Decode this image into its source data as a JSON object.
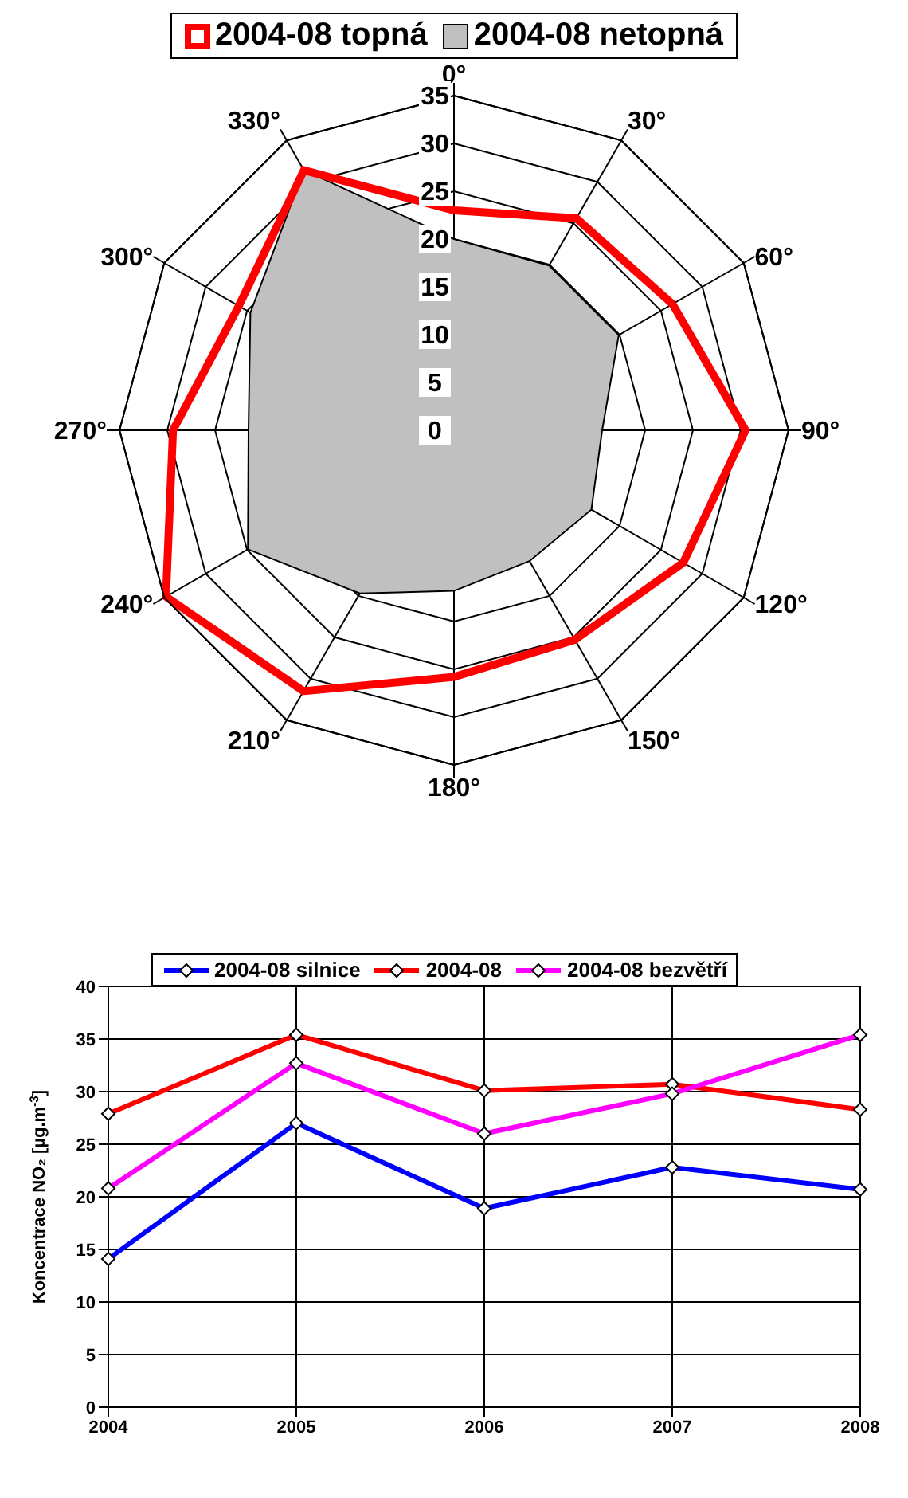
{
  "chart_data": [
    {
      "type": "radar",
      "categories": [
        "0°",
        "30°",
        "60°",
        "90°",
        "120°",
        "150°",
        "180°",
        "210°",
        "240°",
        "270°",
        "300°",
        "330°"
      ],
      "series": [
        {
          "name": "2004-08 topná",
          "color": "#ff0000",
          "values": [
            23,
            25.6,
            26.4,
            30.5,
            27.7,
            25.3,
            25.8,
            31.5,
            34.8,
            29.4,
            26,
            31.4
          ]
        },
        {
          "name": "2004-08 netopná",
          "type": "area",
          "color": "#c0c0c0",
          "values": [
            20,
            19.9,
            19.9,
            15.5,
            16.6,
            15.8,
            16.8,
            19.7,
            24.9,
            21.5,
            24.6,
            31.4
          ]
        }
      ],
      "ylim": [
        0,
        35
      ],
      "yticks": [
        0,
        5,
        10,
        15,
        20,
        25,
        30,
        35
      ],
      "legend": "top",
      "marker": "none"
    },
    {
      "type": "line",
      "categories": [
        "2004",
        "2005",
        "2006",
        "2007",
        "2008"
      ],
      "ylabel": "Koncentrace NO₂ [µg.m$^{-3}$]",
      "series": [
        {
          "name": "2004-08 silnice",
          "color": "#0000ff",
          "values": [
            14.1,
            27,
            18.9,
            22.8,
            20.7
          ]
        },
        {
          "name": "2004-08",
          "color": "#ff0000",
          "values": [
            27.9,
            35.4,
            30.1,
            30.7,
            28.3
          ]
        },
        {
          "name": "2004-08 bezvětří",
          "color": "#ff00ff",
          "values": [
            20.8,
            32.7,
            26,
            29.8,
            35.4
          ]
        }
      ],
      "ylim": [
        0,
        40
      ],
      "yticks": [
        0,
        5,
        10,
        15,
        20,
        25,
        30,
        35,
        40
      ],
      "grid": true,
      "legend": "top",
      "marker": "diamond",
      "line_style": "solid"
    }
  ]
}
